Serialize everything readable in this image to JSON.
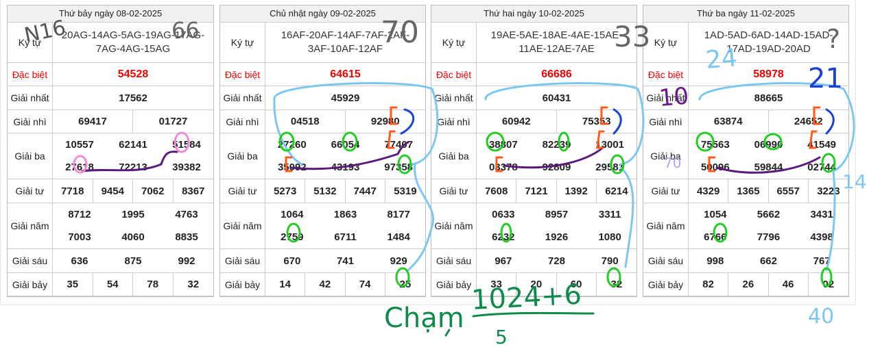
{
  "row_labels": {
    "codes": "Ký tự",
    "special": "Đặc biệt",
    "first": "Giải nhất",
    "second": "Giải nhì",
    "third": "Giải ba",
    "fourth": "Giải tư",
    "fifth": "Giải năm",
    "sixth": "Giải sáu",
    "seventh": "Giải bảy"
  },
  "tables": [
    {
      "date": "Thứ bảy ngày 08-02-2025",
      "codes": "20AG-14AG-5AG-19AG-17AG-7AG-4AG-15AG",
      "special": "54528",
      "first": "17562",
      "second": [
        "69417",
        "01727"
      ],
      "third": [
        "10557",
        "62141",
        "51584",
        "27618",
        "72213",
        "39382"
      ],
      "fourth": [
        "7718",
        "9454",
        "7062",
        "8367"
      ],
      "fifth": [
        "8712",
        "1995",
        "4763",
        "7003",
        "4060",
        "8835"
      ],
      "sixth": [
        "636",
        "875",
        "992"
      ],
      "seventh": [
        "35",
        "54",
        "78",
        "32"
      ]
    },
    {
      "date": "Chủ nhật ngày 09-02-2025",
      "codes": "16AF-20AF-14AF-7AF-2AF-3AF-10AF-12AF",
      "special": "64615",
      "first": "45929",
      "second": [
        "04518",
        "92980"
      ],
      "third": [
        "27260",
        "66054",
        "77407",
        "35092",
        "43193",
        "97358"
      ],
      "fourth": [
        "5273",
        "5132",
        "7447",
        "5319"
      ],
      "fifth": [
        "1064",
        "1863",
        "8177",
        "2759",
        "6711",
        "1484"
      ],
      "sixth": [
        "670",
        "741",
        "929"
      ],
      "seventh": [
        "14",
        "42",
        "74",
        "25"
      ]
    },
    {
      "date": "Thứ hai ngày 10-02-2025",
      "codes": "19AE-5AE-18AE-4AE-15AE-11AE-12AE-7AE",
      "special": "66686",
      "first": "60431",
      "second": [
        "60942",
        "75353"
      ],
      "third": [
        "38807",
        "82239",
        "13001",
        "03378",
        "92809",
        "29581"
      ],
      "fourth": [
        "7608",
        "7121",
        "1392",
        "6214"
      ],
      "fifth": [
        "0633",
        "8957",
        "3311",
        "6232",
        "1926",
        "1080"
      ],
      "sixth": [
        "967",
        "728",
        "790"
      ],
      "seventh": [
        "33",
        "20",
        "60",
        "32"
      ]
    },
    {
      "date": "Thứ ba ngày 11-02-2025",
      "codes": "1AD-5AD-6AD-14AD-15AD-17AD-19AD-20AD",
      "special": "58978",
      "first": "88665",
      "second": [
        "63874",
        "24652"
      ],
      "third": [
        "75563",
        "06990",
        "41549",
        "50096",
        "59844",
        "02744"
      ],
      "fourth": [
        "4329",
        "1365",
        "6557",
        "3223"
      ],
      "fifth": [
        "1054",
        "5662",
        "3431",
        "6766",
        "7796",
        "4398"
      ],
      "sixth": [
        "998",
        "662",
        "767"
      ],
      "seventh": [
        "82",
        "26",
        "46",
        "02"
      ]
    }
  ],
  "annotations": [
    "N16",
    "66",
    "70",
    "33",
    "?",
    "24",
    "21",
    "10",
    "70",
    "14",
    "40",
    "Chạm",
    "1024+6",
    "5"
  ]
}
